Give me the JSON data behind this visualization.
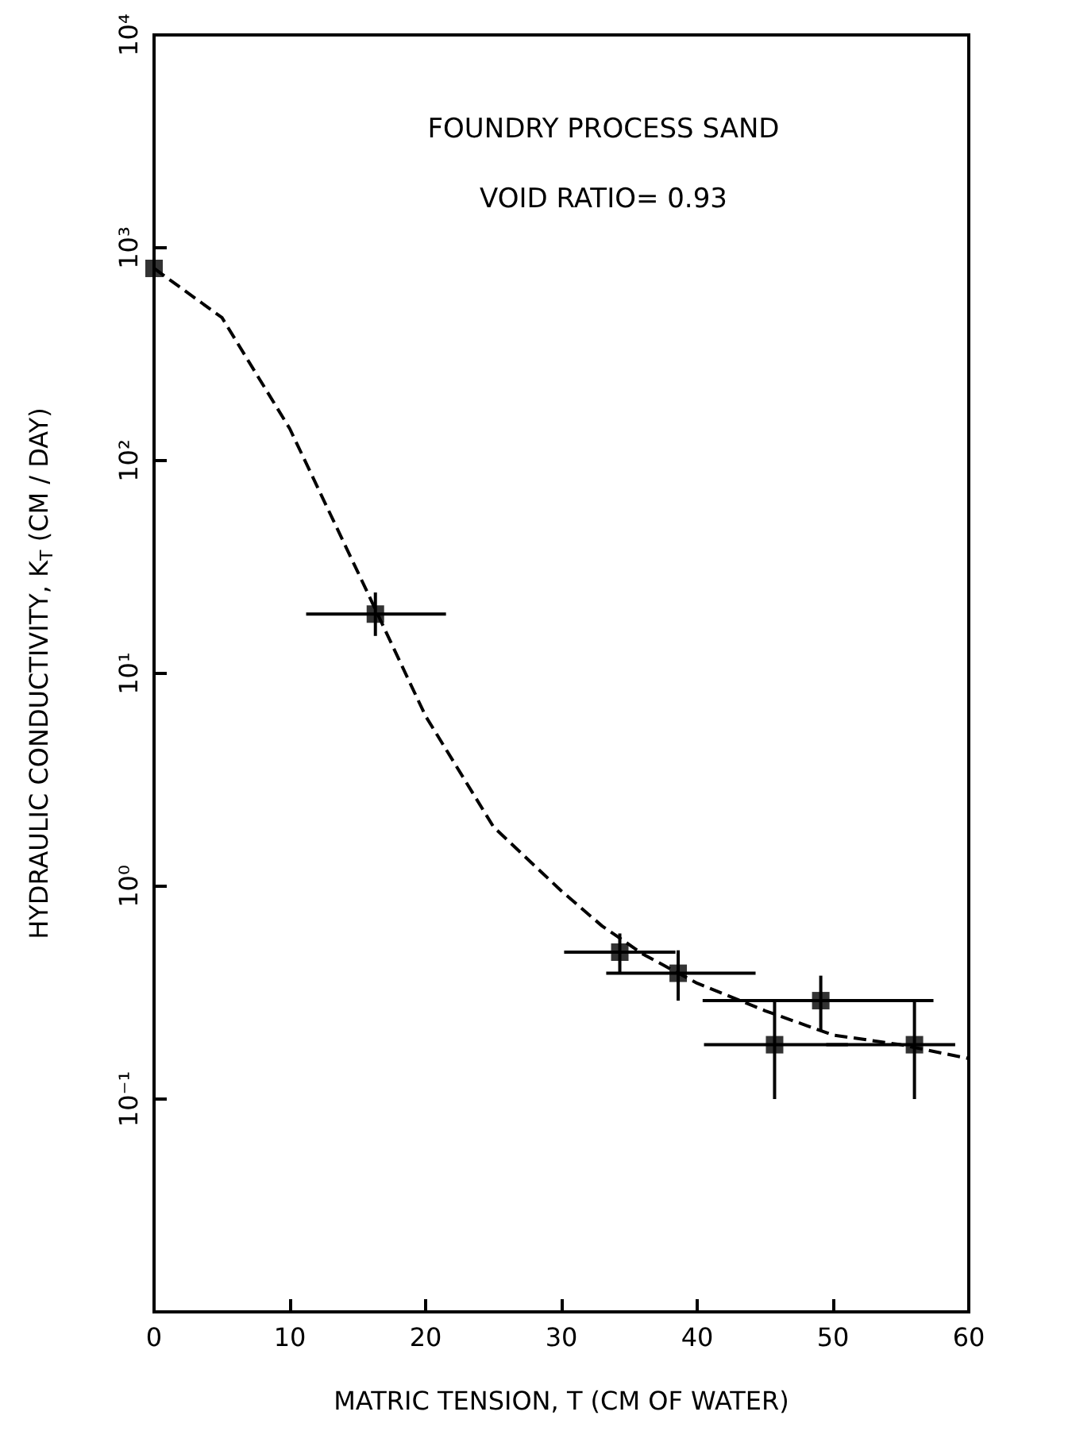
{
  "chart_data": {
    "type": "scatter",
    "title": "FOUNDRY PROCESS SAND",
    "subtitle": "VOID RATIO= 0.93",
    "xlabel": "MATRIC TENSION, T (CM OF WATER)",
    "ylabel": "HYDRAULIC CONDUCTIVITY, K$_{T}$ (CM / DAY)",
    "log": "y",
    "xlim": [
      0,
      60
    ],
    "xticks": [
      0,
      10,
      20,
      30,
      40,
      50,
      60
    ],
    "ylim": [
      0.01,
      10000
    ],
    "yticks": [
      {
        "value": 0.01,
        "label": null
      },
      {
        "value": 0.1,
        "label": "10⁻¹"
      },
      {
        "value": 1,
        "label": "10⁰"
      },
      {
        "value": 10,
        "label": "10¹"
      },
      {
        "value": 100,
        "label": "10²"
      },
      {
        "value": 1000,
        "label": "10³"
      },
      {
        "value": 10000,
        "label": "10⁴"
      }
    ],
    "grid": false,
    "series": [
      {
        "color": "#000000",
        "marker": "square",
        "x": [
          0,
          16.3,
          34.3,
          38.6,
          45.7,
          49.1,
          56.0
        ],
        "values": [
          800,
          19,
          0.49,
          0.39,
          0.18,
          0.29,
          0.18
        ],
        "errors": [
          [
            700,
            1000
          ],
          [
            15,
            24
          ],
          [
            0.39,
            0.6
          ],
          [
            0.29,
            0.5
          ],
          [
            0.1,
            0.29
          ],
          [
            0.21,
            0.38
          ],
          [
            0.1,
            0.29
          ]
        ],
        "xerrors": [
          null,
          [
            11.2,
            21.5
          ],
          [
            30.2,
            38.4
          ],
          [
            33.3,
            44.3
          ],
          [
            40.5,
            51.1
          ],
          [
            40.4,
            57.4
          ],
          [
            49.5,
            59
          ]
        ]
      },
      {
        "type": "line",
        "color": "#000000",
        "marker": "none",
        "line_style": "dashed",
        "x": [
          0,
          5,
          10,
          15,
          20,
          25,
          30,
          33,
          36,
          40,
          45,
          50,
          55,
          60
        ],
        "values": [
          800,
          470,
          141,
          30,
          6.3,
          1.9,
          0.95,
          0.65,
          0.48,
          0.35,
          0.26,
          0.2,
          0.18,
          0.155
        ]
      }
    ]
  }
}
